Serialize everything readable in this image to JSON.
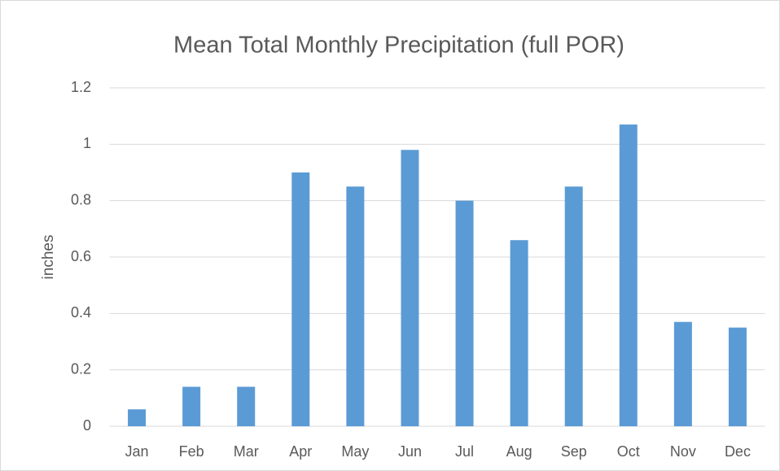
{
  "chart_data": {
    "type": "bar",
    "title": "Mean Total Monthly Precipitation (full POR)",
    "y_label": "inches",
    "categories": [
      "Jan",
      "Feb",
      "Mar",
      "Apr",
      "May",
      "Jun",
      "Jul",
      "Aug",
      "Sep",
      "Oct",
      "Nov",
      "Dec"
    ],
    "values": [
      0.06,
      0.14,
      0.14,
      0.9,
      0.85,
      0.98,
      0.8,
      0.66,
      0.85,
      1.07,
      0.37,
      0.35
    ],
    "color": "#5b9bd5",
    "ylim": [
      0,
      1.2
    ],
    "yticks": [
      0,
      0.2,
      0.4,
      0.6,
      0.8,
      1,
      1.2
    ],
    "grid": true
  }
}
